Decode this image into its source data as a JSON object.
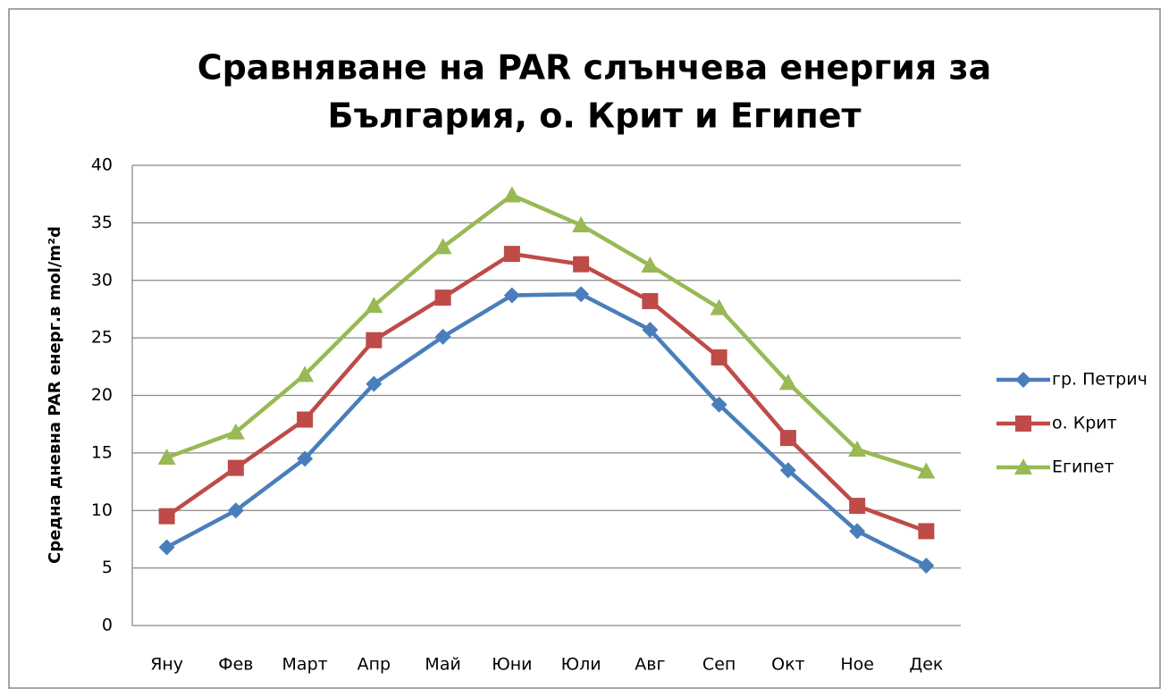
{
  "chart_data": {
    "type": "line",
    "title": [
      "Сравняване на PAR слънчева енергия за",
      "България, о. Крит и Египет"
    ],
    "y_label": "Средна дневна PAR  енерг.в mol/m²d",
    "categories": [
      "Яну",
      "Фев",
      "Март",
      "Апр",
      "Май",
      "Юни",
      "Юли",
      "Авг",
      "Сеп",
      "Окт",
      "Ное",
      "Дек"
    ],
    "series": [
      {
        "name": "гр. Петрич",
        "color": "#4a7ebb",
        "marker": "diamond",
        "values": [
          6.8,
          10.0,
          14.5,
          21.0,
          25.1,
          28.7,
          28.8,
          25.7,
          19.2,
          13.5,
          8.2,
          5.2
        ]
      },
      {
        "name": "о. Крит",
        "color": "#be4b48",
        "marker": "square",
        "values": [
          9.5,
          13.7,
          17.9,
          24.8,
          28.5,
          32.3,
          31.4,
          28.2,
          23.3,
          16.3,
          10.4,
          8.2
        ]
      },
      {
        "name": "Египет",
        "color": "#98b954",
        "marker": "triangle",
        "values": [
          14.6,
          16.8,
          21.8,
          27.8,
          32.9,
          37.4,
          34.8,
          31.3,
          27.6,
          21.1,
          15.3,
          13.4
        ]
      }
    ],
    "ylim": [
      0,
      40
    ],
    "yticks": [
      0,
      5,
      10,
      15,
      20,
      25,
      30,
      35,
      40
    ],
    "grid": true,
    "legend": "right"
  }
}
